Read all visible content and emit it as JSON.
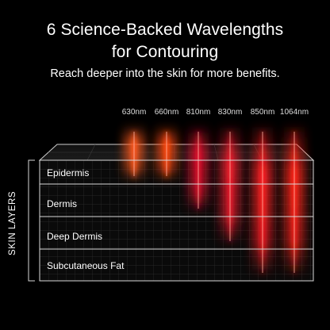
{
  "header": {
    "title_line1": "6 Science-Backed Wavelengths",
    "title_line2": "for Contouring",
    "subtitle": "Reach deeper into the skin for more benefits."
  },
  "wavelengths": [
    {
      "label": "630nm",
      "color": "#ff5a1e",
      "depth_layer": 1
    },
    {
      "label": "660nm",
      "color": "#ff4a10",
      "depth_layer": 1
    },
    {
      "label": "810nm",
      "color": "#e0122c",
      "depth_layer": 2
    },
    {
      "label": "830nm",
      "color": "#f01c2c",
      "depth_layer": 3
    },
    {
      "label": "850nm",
      "color": "#ff1e22",
      "depth_layer": 4
    },
    {
      "label": "1064nm",
      "color": "#ff2418",
      "depth_layer": 4
    }
  ],
  "skin_layers": {
    "title": "SKIN LAYERS",
    "items": [
      "Epidermis",
      "Dermis",
      "Deep Dermis",
      "Subcutaneous Fat"
    ]
  }
}
